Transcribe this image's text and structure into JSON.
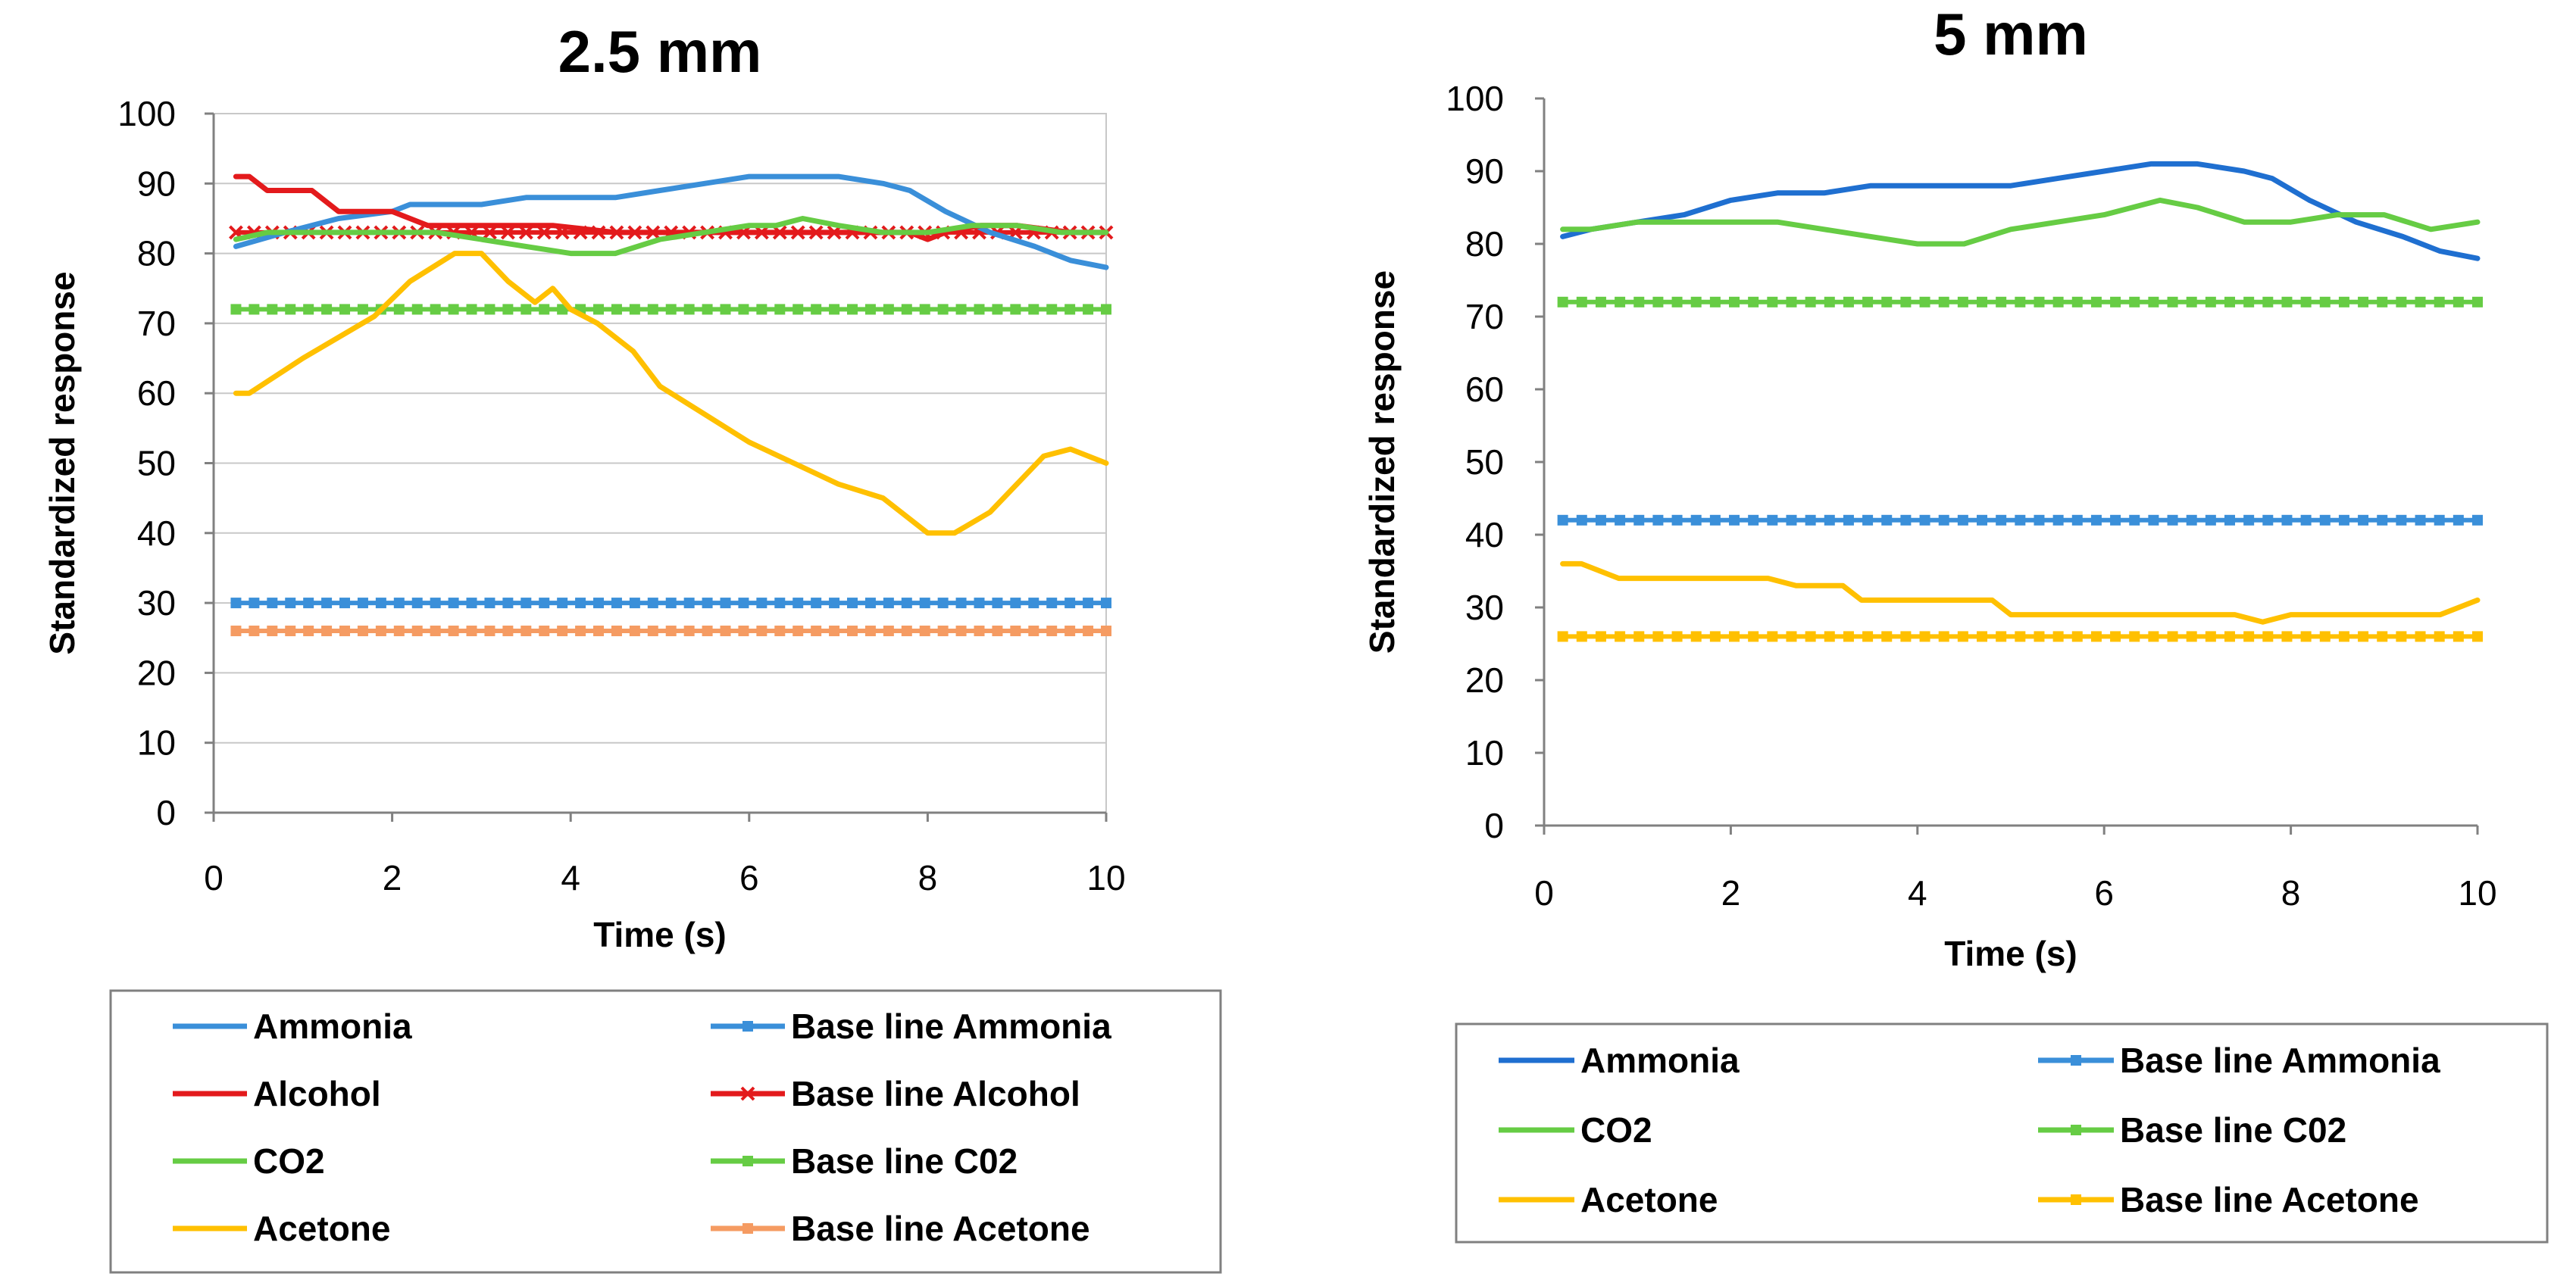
{
  "chart_data": [
    {
      "type": "line",
      "title": "2.5 mm",
      "xlabel": "Time (s)",
      "ylabel": "Standardized response",
      "xlim": [
        0,
        10
      ],
      "ylim": [
        0,
        100
      ],
      "xticks": [
        0,
        2,
        4,
        6,
        8,
        10
      ],
      "yticks": [
        0,
        10,
        20,
        30,
        40,
        50,
        60,
        70,
        80,
        90,
        100
      ],
      "grid": true,
      "legend_position": "bottom",
      "series": [
        {
          "name": "Ammonia",
          "color": "#3a8fd9",
          "marker": "none",
          "x": [
            0.25,
            0.8,
            1.4,
            2.0,
            2.2,
            3.0,
            3.5,
            4.5,
            5.0,
            5.5,
            6.0,
            6.5,
            7.0,
            7.5,
            7.8,
            8.2,
            8.7,
            9.2,
            9.6,
            10.0
          ],
          "y": [
            81,
            83,
            85,
            86,
            87,
            87,
            88,
            88,
            89,
            90,
            91,
            91,
            91,
            90,
            89,
            86,
            83,
            81,
            79,
            78
          ]
        },
        {
          "name": "Alcohol",
          "color": "#e31a1c",
          "marker": "none",
          "x": [
            0.25,
            0.4,
            0.6,
            0.8,
            1.1,
            1.4,
            2.0,
            2.4,
            3.0,
            3.8,
            4.5,
            6.0,
            7.0,
            7.5,
            7.8,
            8.0,
            8.2,
            8.6,
            9.0,
            9.6,
            10.0
          ],
          "y": [
            91,
            91,
            89,
            89,
            89,
            86,
            86,
            84,
            84,
            84,
            83,
            83,
            83,
            83,
            83,
            82,
            83,
            84,
            84,
            83,
            83
          ]
        },
        {
          "name": "CO2",
          "color": "#66cc44",
          "marker": "none",
          "x": [
            0.25,
            0.6,
            1.0,
            1.5,
            2.0,
            2.5,
            3.0,
            3.5,
            4.0,
            4.5,
            5.0,
            5.5,
            6.0,
            6.3,
            6.6,
            7.0,
            7.5,
            8.0,
            8.5,
            9.0,
            9.5,
            10.0
          ],
          "y": [
            82,
            83,
            83,
            83,
            83,
            83,
            82,
            81,
            80,
            80,
            82,
            83,
            84,
            84,
            85,
            84,
            83,
            83,
            84,
            84,
            83,
            83
          ]
        },
        {
          "name": "Acetone",
          "color": "#ffc000",
          "marker": "none",
          "x": [
            0.25,
            0.4,
            1.0,
            1.8,
            2.2,
            2.7,
            3.0,
            3.3,
            3.6,
            3.8,
            4.0,
            4.3,
            4.7,
            5.0,
            5.5,
            6.0,
            6.5,
            7.0,
            7.5,
            8.0,
            8.3,
            8.7,
            9.0,
            9.3,
            9.6,
            10.0
          ],
          "y": [
            60,
            60,
            65,
            71,
            76,
            80,
            80,
            76,
            73,
            75,
            72,
            70,
            66,
            61,
            57,
            53,
            50,
            47,
            45,
            40,
            40,
            43,
            47,
            51,
            52,
            50
          ]
        },
        {
          "name": "Base line Ammonia",
          "color": "#3a8fd9",
          "marker": "square",
          "x": [
            0.25,
            10.0
          ],
          "y": [
            30,
            30
          ]
        },
        {
          "name": "Base line Alcohol",
          "color": "#e31a1c",
          "marker": "x",
          "x": [
            0.25,
            10.0
          ],
          "y": [
            83,
            83
          ]
        },
        {
          "name": "Base line C02",
          "color": "#66cc44",
          "marker": "square",
          "x": [
            0.25,
            10.0
          ],
          "y": [
            72,
            72
          ]
        },
        {
          "name": "Base line Acetone",
          "color": "#f59b62",
          "marker": "square",
          "x": [
            0.25,
            10.0
          ],
          "y": [
            26,
            26
          ]
        }
      ],
      "legend": [
        {
          "label": "Ammonia",
          "color": "#3a8fd9",
          "marker": "none"
        },
        {
          "label": "Base line Ammonia",
          "color": "#3a8fd9",
          "marker": "square"
        },
        {
          "label": "Alcohol",
          "color": "#e31a1c",
          "marker": "none"
        },
        {
          "label": "Base line Alcohol",
          "color": "#e31a1c",
          "marker": "x"
        },
        {
          "label": "CO2",
          "color": "#66cc44",
          "marker": "none"
        },
        {
          "label": "Base line C02",
          "color": "#66cc44",
          "marker": "square"
        },
        {
          "label": "Acetone",
          "color": "#ffc000",
          "marker": "none"
        },
        {
          "label": "Base line Acetone",
          "color": "#f59b62",
          "marker": "square"
        }
      ]
    },
    {
      "type": "line",
      "title": "5 mm",
      "xlabel": "Time (s)",
      "ylabel": "Standardized response",
      "xlim": [
        0,
        10
      ],
      "ylim": [
        0,
        100
      ],
      "xticks": [
        0,
        2,
        4,
        6,
        8,
        10
      ],
      "yticks": [
        0,
        10,
        20,
        30,
        40,
        50,
        60,
        70,
        80,
        90,
        100
      ],
      "grid": false,
      "legend_position": "bottom",
      "series": [
        {
          "name": "Ammonia",
          "color": "#1f6fd0",
          "marker": "none",
          "x": [
            0.2,
            0.5,
            1.0,
            1.5,
            2.0,
            2.5,
            3.0,
            3.5,
            4.0,
            4.5,
            5.0,
            5.5,
            6.0,
            6.5,
            7.0,
            7.5,
            7.8,
            8.2,
            8.7,
            9.2,
            9.6,
            10.0
          ],
          "y": [
            81,
            82,
            83,
            84,
            86,
            87,
            87,
            88,
            88,
            88,
            88,
            89,
            90,
            91,
            91,
            90,
            89,
            86,
            83,
            81,
            79,
            78
          ]
        },
        {
          "name": "CO2",
          "color": "#66cc44",
          "marker": "none",
          "x": [
            0.2,
            0.5,
            1.0,
            1.4,
            2.0,
            2.5,
            3.0,
            3.5,
            4.0,
            4.5,
            5.0,
            5.5,
            6.0,
            6.3,
            6.6,
            7.0,
            7.5,
            8.0,
            8.5,
            9.0,
            9.5,
            10.0
          ],
          "y": [
            82,
            82,
            83,
            83,
            83,
            83,
            82,
            81,
            80,
            80,
            82,
            83,
            84,
            85,
            86,
            85,
            83,
            83,
            84,
            84,
            82,
            83
          ]
        },
        {
          "name": "Acetone",
          "color": "#ffc000",
          "marker": "none",
          "x": [
            0.2,
            0.4,
            0.8,
            1.5,
            2.4,
            2.7,
            3.2,
            3.4,
            4.0,
            4.8,
            5.0,
            6.0,
            7.0,
            7.4,
            7.7,
            8.0,
            8.5,
            9.0,
            9.6,
            10.0
          ],
          "y": [
            36,
            36,
            34,
            34,
            34,
            33,
            33,
            31,
            31,
            31,
            29,
            29,
            29,
            29,
            28,
            29,
            29,
            29,
            29,
            31
          ]
        },
        {
          "name": "Base line Ammonia",
          "color": "#3a8fd9",
          "marker": "square",
          "x": [
            0.2,
            10.0
          ],
          "y": [
            42,
            42
          ]
        },
        {
          "name": "Base line C02",
          "color": "#66cc44",
          "marker": "square",
          "x": [
            0.2,
            10.0
          ],
          "y": [
            72,
            72
          ]
        },
        {
          "name": "Base line Acetone",
          "color": "#ffc000",
          "marker": "square",
          "x": [
            0.2,
            10.0
          ],
          "y": [
            26,
            26
          ]
        }
      ],
      "legend": [
        {
          "label": "Ammonia",
          "color": "#1f6fd0",
          "marker": "none"
        },
        {
          "label": "Base line Ammonia",
          "color": "#3a8fd9",
          "marker": "square"
        },
        {
          "label": "CO2",
          "color": "#66cc44",
          "marker": "none"
        },
        {
          "label": "Base line C02",
          "color": "#66cc44",
          "marker": "square"
        },
        {
          "label": "Acetone",
          "color": "#ffc000",
          "marker": "none"
        },
        {
          "label": "Base line Acetone",
          "color": "#ffc000",
          "marker": "square"
        }
      ]
    }
  ]
}
